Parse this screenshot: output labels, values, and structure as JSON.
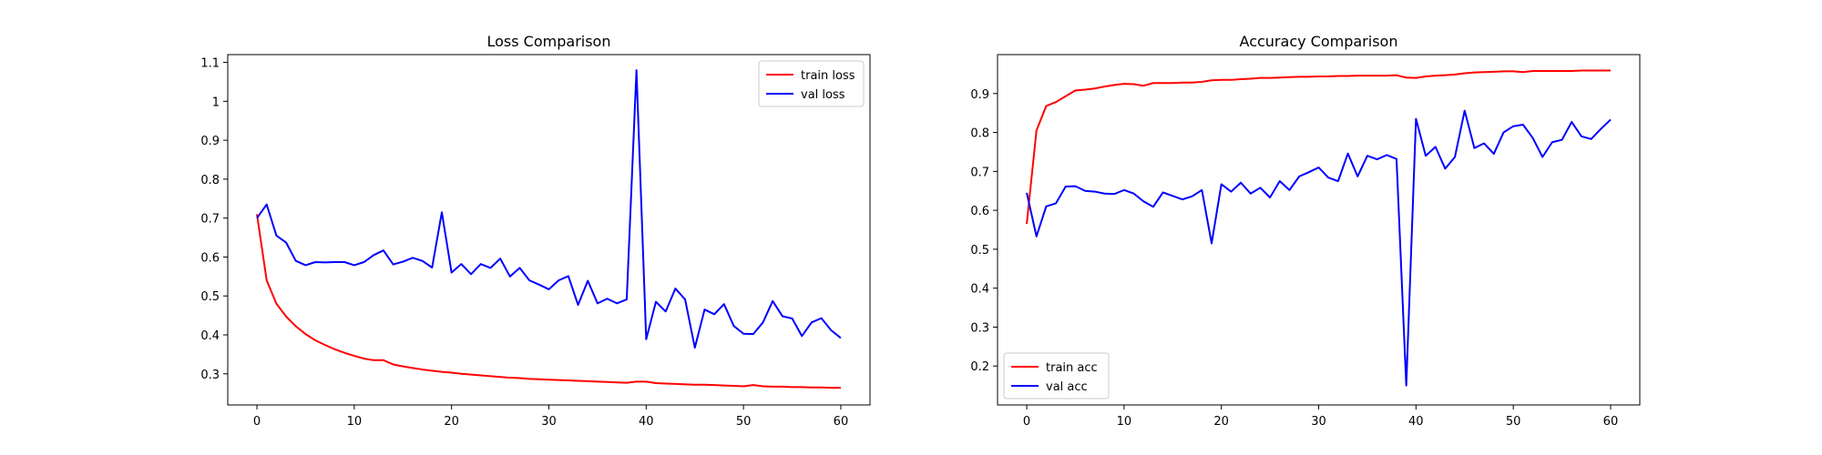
{
  "chart_data": [
    {
      "type": "line",
      "title": "Loss Comparison",
      "xlabel": "",
      "ylabel": "",
      "xlim": [
        -3,
        63
      ],
      "ylim": [
        0.22,
        1.12
      ],
      "xticks": [
        0,
        10,
        20,
        30,
        40,
        50,
        60
      ],
      "yticks": [
        0.3,
        0.4,
        0.5,
        0.6,
        0.7,
        0.8,
        0.9,
        1.0,
        1.1
      ],
      "grid": false,
      "legend_position": "top-right",
      "x": [
        0,
        1,
        2,
        3,
        4,
        5,
        6,
        7,
        8,
        9,
        10,
        11,
        12,
        13,
        14,
        15,
        16,
        17,
        18,
        19,
        20,
        21,
        22,
        23,
        24,
        25,
        26,
        27,
        28,
        29,
        30,
        31,
        32,
        33,
        34,
        35,
        36,
        37,
        38,
        39,
        40,
        41,
        42,
        43,
        44,
        45,
        46,
        47,
        48,
        49,
        50,
        51,
        52,
        53,
        54,
        55,
        56,
        57,
        58,
        59,
        60
      ],
      "series": [
        {
          "name": "train loss",
          "color": "#ff0000",
          "values": [
            0.71,
            0.54,
            0.48,
            0.447,
            0.422,
            0.402,
            0.386,
            0.374,
            0.363,
            0.354,
            0.346,
            0.339,
            0.335,
            0.335,
            0.324,
            0.319,
            0.315,
            0.311,
            0.308,
            0.305,
            0.303,
            0.3,
            0.298,
            0.296,
            0.294,
            0.292,
            0.29,
            0.289,
            0.287,
            0.286,
            0.285,
            0.284,
            0.283,
            0.282,
            0.281,
            0.28,
            0.279,
            0.278,
            0.277,
            0.28,
            0.28,
            0.276,
            0.275,
            0.274,
            0.273,
            0.272,
            0.272,
            0.271,
            0.27,
            0.269,
            0.268,
            0.271,
            0.268,
            0.267,
            0.267,
            0.266,
            0.266,
            0.265,
            0.265,
            0.264,
            0.264
          ]
        },
        {
          "name": "val loss",
          "color": "#0000ff",
          "values": [
            0.7,
            0.735,
            0.655,
            0.637,
            0.59,
            0.579,
            0.587,
            0.586,
            0.587,
            0.587,
            0.579,
            0.587,
            0.605,
            0.617,
            0.581,
            0.588,
            0.598,
            0.59,
            0.573,
            0.715,
            0.56,
            0.582,
            0.556,
            0.582,
            0.572,
            0.596,
            0.55,
            0.572,
            0.54,
            0.529,
            0.517,
            0.54,
            0.551,
            0.477,
            0.539,
            0.481,
            0.493,
            0.481,
            0.491,
            1.08,
            0.389,
            0.485,
            0.46,
            0.519,
            0.491,
            0.367,
            0.465,
            0.453,
            0.479,
            0.423,
            0.403,
            0.402,
            0.432,
            0.487,
            0.448,
            0.442,
            0.397,
            0.432,
            0.443,
            0.412,
            0.392
          ]
        }
      ]
    },
    {
      "type": "line",
      "title": "Accuracy Comparison",
      "xlabel": "",
      "ylabel": "",
      "xlim": [
        -3,
        63
      ],
      "ylim": [
        0.1,
        1.0
      ],
      "xticks": [
        0,
        10,
        20,
        30,
        40,
        50,
        60
      ],
      "yticks": [
        0.2,
        0.3,
        0.4,
        0.5,
        0.6,
        0.7,
        0.8,
        0.9
      ],
      "grid": false,
      "legend_position": "bottom-left",
      "x": [
        0,
        1,
        2,
        3,
        4,
        5,
        6,
        7,
        8,
        9,
        10,
        11,
        12,
        13,
        14,
        15,
        16,
        17,
        18,
        19,
        20,
        21,
        22,
        23,
        24,
        25,
        26,
        27,
        28,
        29,
        30,
        31,
        32,
        33,
        34,
        35,
        36,
        37,
        38,
        39,
        40,
        41,
        42,
        43,
        44,
        45,
        46,
        47,
        48,
        49,
        50,
        51,
        52,
        53,
        54,
        55,
        56,
        57,
        58,
        59,
        60
      ],
      "series": [
        {
          "name": "train acc",
          "color": "#ff0000",
          "values": [
            0.565,
            0.805,
            0.868,
            0.878,
            0.893,
            0.908,
            0.91,
            0.913,
            0.918,
            0.922,
            0.925,
            0.924,
            0.92,
            0.927,
            0.927,
            0.927,
            0.928,
            0.928,
            0.93,
            0.934,
            0.935,
            0.935,
            0.937,
            0.938,
            0.94,
            0.94,
            0.941,
            0.942,
            0.943,
            0.943,
            0.944,
            0.944,
            0.945,
            0.945,
            0.946,
            0.946,
            0.946,
            0.946,
            0.947,
            0.941,
            0.94,
            0.944,
            0.946,
            0.947,
            0.949,
            0.952,
            0.954,
            0.955,
            0.956,
            0.957,
            0.957,
            0.955,
            0.958,
            0.958,
            0.958,
            0.958,
            0.958,
            0.959,
            0.959,
            0.959,
            0.959
          ]
        },
        {
          "name": "val acc",
          "color": "#0000ff",
          "values": [
            0.645,
            0.533,
            0.61,
            0.618,
            0.661,
            0.662,
            0.65,
            0.648,
            0.643,
            0.642,
            0.652,
            0.643,
            0.623,
            0.609,
            0.646,
            0.637,
            0.628,
            0.636,
            0.652,
            0.515,
            0.667,
            0.648,
            0.671,
            0.643,
            0.658,
            0.633,
            0.675,
            0.652,
            0.687,
            0.698,
            0.71,
            0.684,
            0.675,
            0.746,
            0.687,
            0.74,
            0.731,
            0.742,
            0.732,
            0.15,
            0.835,
            0.74,
            0.763,
            0.707,
            0.737,
            0.856,
            0.76,
            0.772,
            0.745,
            0.8,
            0.816,
            0.82,
            0.786,
            0.737,
            0.775,
            0.781,
            0.827,
            0.79,
            0.783,
            0.809,
            0.833
          ]
        }
      ]
    }
  ]
}
